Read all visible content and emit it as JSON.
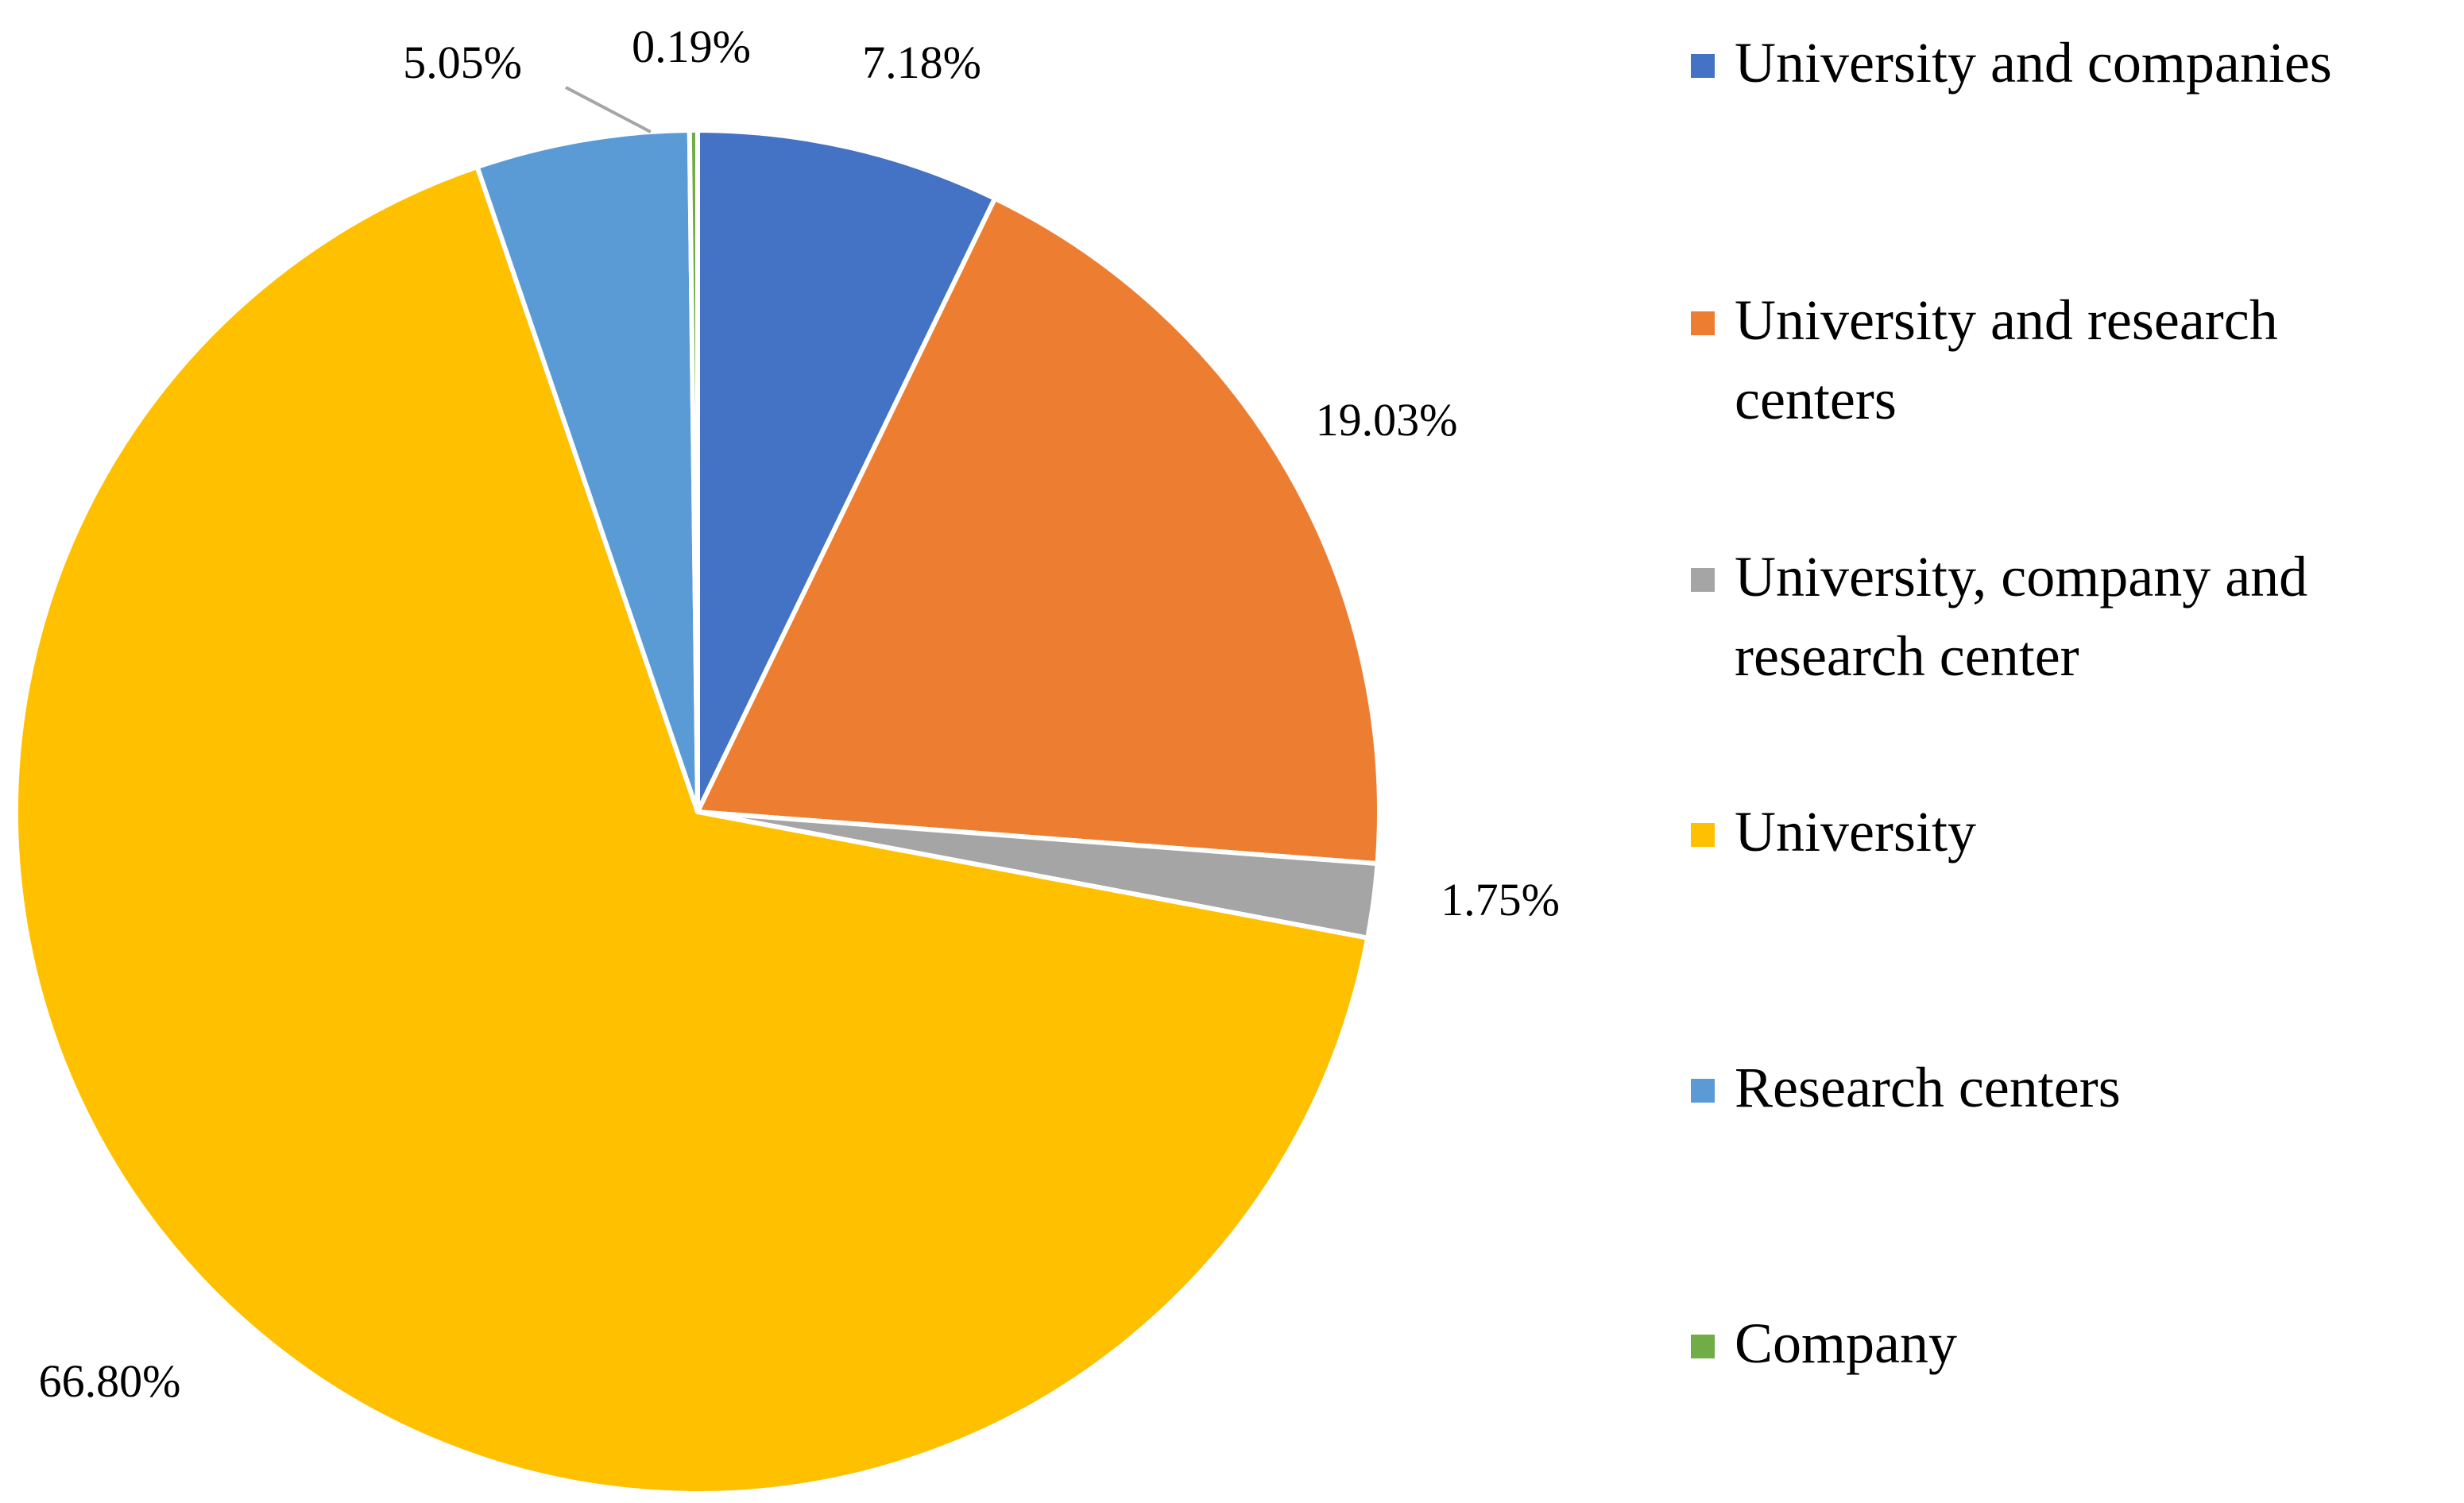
{
  "chart_data": {
    "type": "pie",
    "title": "",
    "legend_position": "right",
    "slices": [
      {
        "label": "University and companies",
        "legend": [
          "University and companies"
        ],
        "value": 7.18,
        "value_label": "7.18%",
        "color": "#4472C4"
      },
      {
        "label": "University and research centers",
        "legend": [
          "University and research",
          "centers"
        ],
        "value": 19.03,
        "value_label": "19.03%",
        "color": "#ED7D31"
      },
      {
        "label": "University, company and research center",
        "legend": [
          "University, company and",
          "research center"
        ],
        "value": 1.75,
        "value_label": "1.75%",
        "color": "#A5A5A5"
      },
      {
        "label": "University",
        "legend": [
          "University"
        ],
        "value": 66.8,
        "value_label": "66.80%",
        "color": "#FFC000"
      },
      {
        "label": "Research centers",
        "legend": [
          "Research centers"
        ],
        "value": 5.05,
        "value_label": "5.05%",
        "color": "#5B9BD5"
      },
      {
        "label": "Company",
        "legend": [
          "Company"
        ],
        "value": 0.19,
        "value_label": "0.19%",
        "color": "#70AD47"
      }
    ]
  }
}
